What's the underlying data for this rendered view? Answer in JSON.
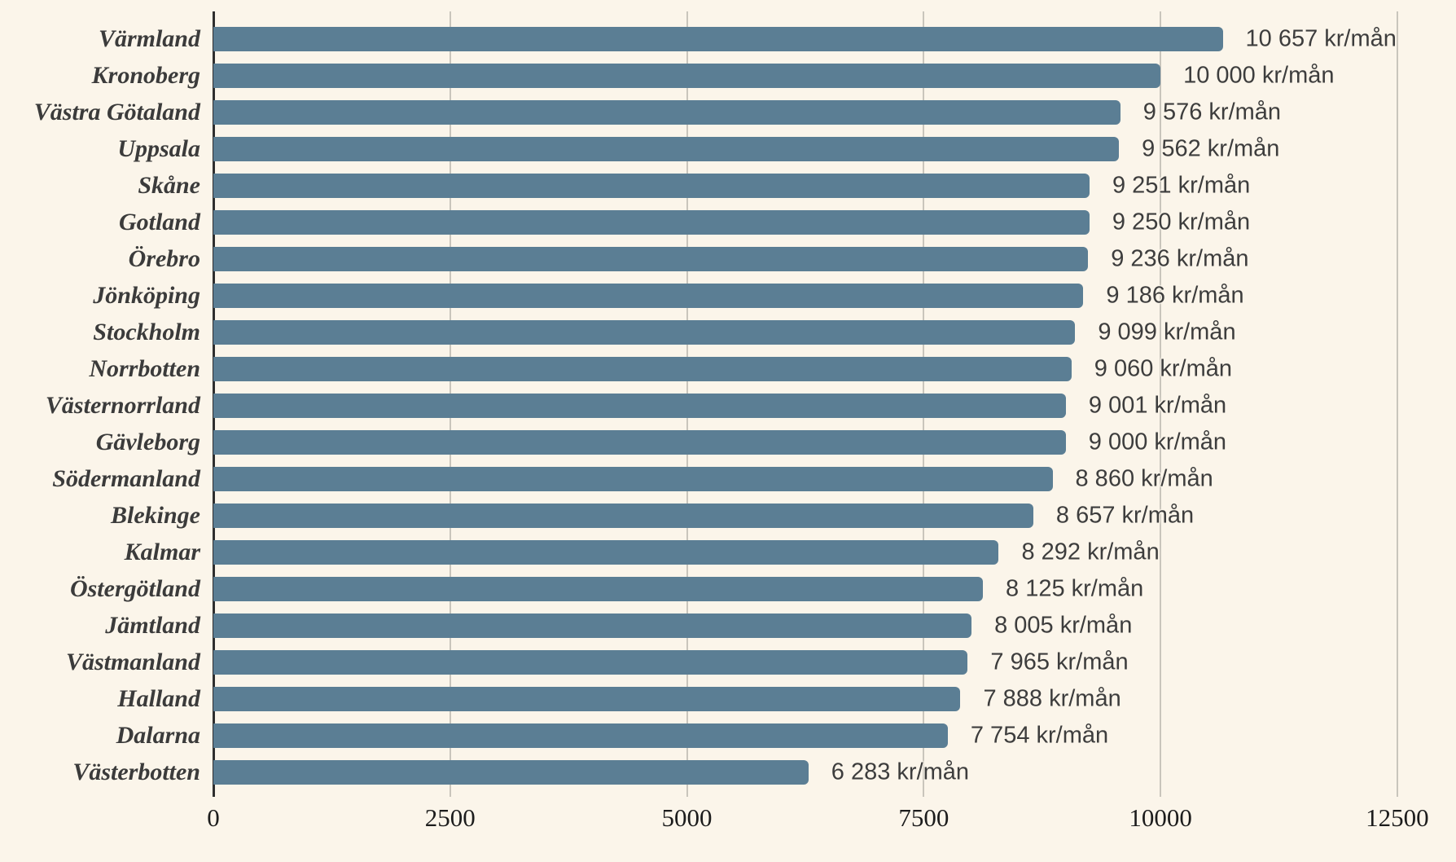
{
  "chart_data": {
    "type": "bar",
    "orientation": "horizontal",
    "title": "",
    "xlabel": "",
    "ylabel": "",
    "unit": "kr/mån",
    "categories": [
      "Värmland",
      "Kronoberg",
      "Västra Götaland",
      "Uppsala",
      "Skåne",
      "Gotland",
      "Örebro",
      "Jönköping",
      "Stockholm",
      "Norrbotten",
      "Västernorrland",
      "Gävleborg",
      "Södermanland",
      "Blekinge",
      "Kalmar",
      "Östergötland",
      "Jämtland",
      "Västmanland",
      "Halland",
      "Dalarna",
      "Västerbotten"
    ],
    "values": [
      10657,
      10000,
      9576,
      9562,
      9251,
      9250,
      9236,
      9186,
      9099,
      9060,
      9001,
      9000,
      8860,
      8657,
      8292,
      8125,
      8005,
      7965,
      7888,
      7754,
      6283
    ],
    "value_labels": [
      "10 657 kr/mån",
      "10 000 kr/mån",
      "9 576 kr/mån",
      "9 562 kr/mån",
      "9 251 kr/mån",
      "9 250 kr/mån",
      "9 236 kr/mån",
      "9 186 kr/mån",
      "9 099 kr/mån",
      "9 060 kr/mån",
      "9 001 kr/mån",
      "9 000 kr/mån",
      "8 860 kr/mån",
      "8 657 kr/mån",
      "8 292 kr/mån",
      "8 125 kr/mån",
      "8 005 kr/mån",
      "7 965 kr/mån",
      "7 888 kr/mån",
      "7 754 kr/mån",
      "6 283 kr/mån"
    ],
    "x_ticks": [
      0,
      2500,
      5000,
      7500,
      10000,
      12500
    ],
    "x_tick_labels": [
      "0",
      "2500",
      "5000",
      "7500",
      "10000",
      "12500"
    ],
    "xlim": [
      0,
      13120
    ],
    "grid": "vertical",
    "legend": "none",
    "colors": {
      "bar": "#5B7E94",
      "background": "#FBF5EA",
      "gridline": "#C9C5BC",
      "axis_line": "#2E2E2E",
      "category_label": "#3B3B3B",
      "value_label": "#3D3D3D",
      "tick_label": "#1C1C1C"
    }
  }
}
